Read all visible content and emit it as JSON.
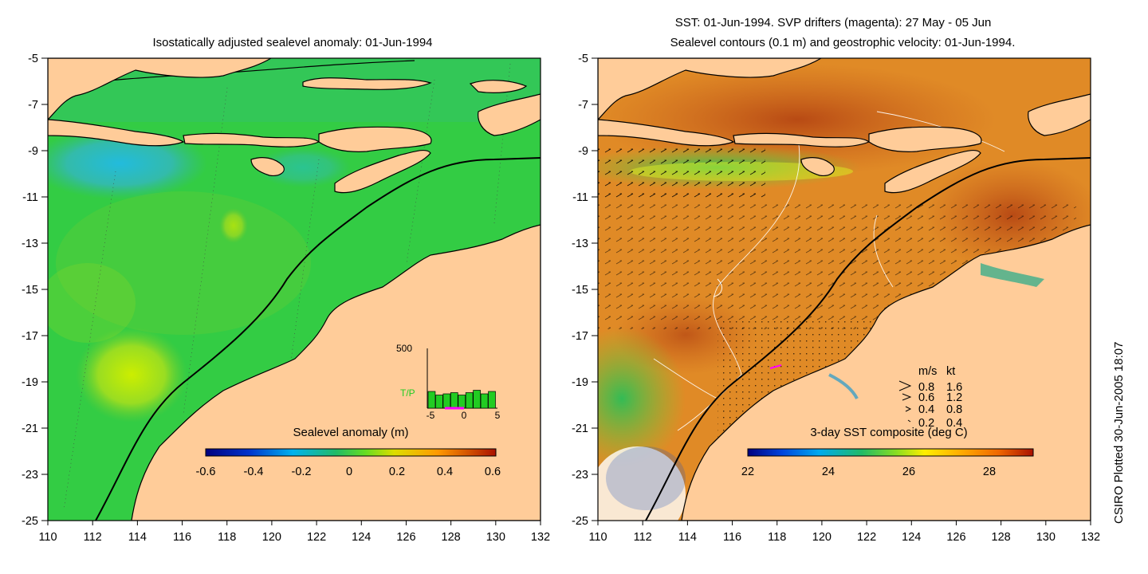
{
  "left_panel": {
    "title": "Isostatically adjusted sealevel anomaly: 01-Jun-1994",
    "colorbar_label": "Sealevel anomaly (m)",
    "colorbar_ticks": [
      "-0.6",
      "-0.4",
      "-0.2",
      "0",
      "0.2",
      "0.4",
      "0.6"
    ],
    "inset": {
      "ylabel_top": "500",
      "series_label": "T/P",
      "x_ticks": [
        "-5",
        "0",
        "5"
      ],
      "bar_color": "#22cc22",
      "drifter_color": "#ff00ff",
      "bars": [
        0.28,
        0.22,
        0.24,
        0.26,
        0.22,
        0.26,
        0.3,
        0.24,
        0.28
      ]
    }
  },
  "right_panel": {
    "title_line1": "SST: 01-Jun-1994. SVP drifters (magenta): 27 May - 05 Jun",
    "title_line2": "Sealevel contours (0.1 m) and geostrophic velocity: 01-Jun-1994.",
    "colorbar_label": "3-day SST composite (deg C)",
    "colorbar_ticks": [
      "22",
      "24",
      "26",
      "28"
    ],
    "velocity_legend": {
      "header_ms": "m/s",
      "header_kt": "kt",
      "rows": [
        {
          "ms": "0.8",
          "kt": "1.6"
        },
        {
          "ms": "0.6",
          "kt": "1.2"
        },
        {
          "ms": "0.4",
          "kt": "0.8"
        },
        {
          "ms": "0.2",
          "kt": "0.4"
        }
      ]
    }
  },
  "axes": {
    "y_ticks": [
      "-5",
      "-7",
      "-9",
      "-11",
      "-13",
      "-15",
      "-17",
      "-19",
      "-21",
      "-23",
      "-25"
    ],
    "x_ticks": [
      "110",
      "112",
      "114",
      "116",
      "118",
      "120",
      "122",
      "124",
      "126",
      "128",
      "130",
      "132"
    ],
    "lon_range": [
      110,
      132
    ],
    "lat_range": [
      -25,
      -5
    ]
  },
  "credit": "CSIRO Plotted 30-Jun-2005 18:07",
  "colors": {
    "land": "#ffcc99",
    "sea_level_base": "#33cc44",
    "sst_base": "#e08a26"
  }
}
